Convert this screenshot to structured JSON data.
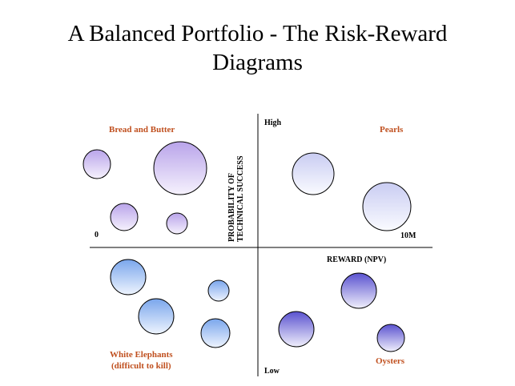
{
  "title": {
    "line1": "A Balanced Portfolio - The Risk-Reward",
    "line2": "Diagrams"
  },
  "axes": {
    "y_high": "High",
    "y_low": "Low",
    "x_min": "0",
    "x_max": "10M",
    "y_title_line1": "PROBABILITY OF",
    "y_title_line2": "TECHNICAL SUCCESS",
    "x_title": "REWARD (NPV)"
  },
  "quadrants": {
    "top_left": "Bread and Butter",
    "top_right": "Pearls",
    "bottom_left_line1": "White Elephants",
    "bottom_left_line2": "(difficult to kill)",
    "bottom_right": "Oysters"
  },
  "colors": {
    "label_accent": "#c0501f",
    "bread_and_butter_bubble": "#c9b8ee",
    "pearls_bubble": "#d9dcf6",
    "white_elephants_bubble": "#8fb6ef",
    "oysters_bubble": "#6d67d6"
  }
}
